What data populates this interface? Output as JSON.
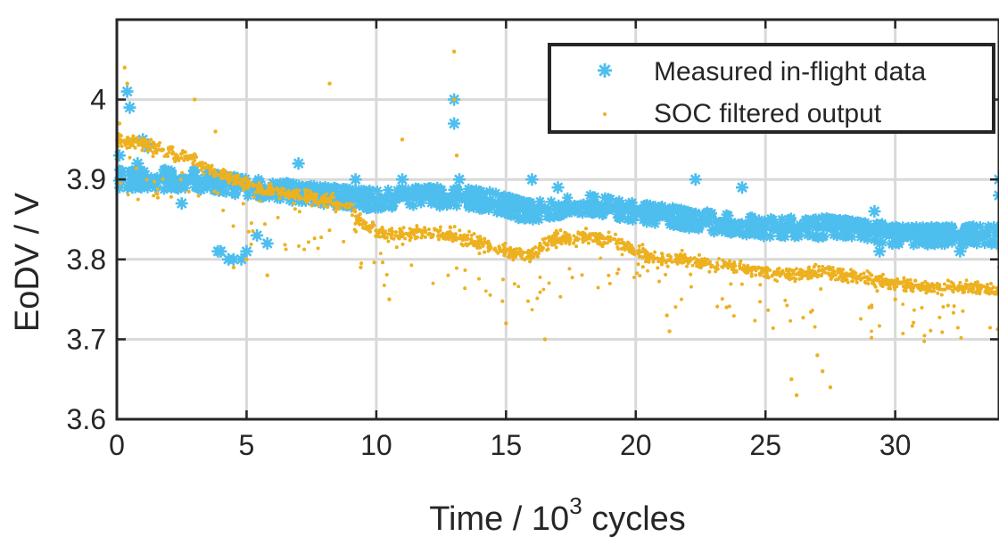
{
  "chart_data": {
    "type": "scatter",
    "title": "",
    "xlabel_prefix": "Time  /  10",
    "xlabel_sup": "3",
    "xlabel_suffix": " cycles",
    "ylabel": "EoDV  /  V",
    "xlim": [
      0,
      34
    ],
    "ylim": [
      3.6,
      4.1
    ],
    "grid": true,
    "legend_position": "top-right",
    "xticks": [
      0,
      5,
      10,
      15,
      20,
      25,
      30
    ],
    "yticks": [
      3.6,
      3.7,
      3.8,
      3.9,
      4.0
    ],
    "xtick_labels": [
      "0",
      "5",
      "10",
      "15",
      "20",
      "25",
      "30"
    ],
    "ytick_labels": [
      "3.6",
      "3.7",
      "3.8",
      "3.9",
      "4"
    ],
    "colors": {
      "measured": "#4DBEEE",
      "filtered": "#EDB120",
      "axis": "#262626",
      "grid": "#d9d9d9"
    },
    "series": [
      {
        "name": "Measured in-flight data",
        "marker": "asterisk",
        "baseline": [
          [
            0,
            3.9
          ],
          [
            3,
            3.9
          ],
          [
            5,
            3.89
          ],
          [
            8,
            3.88
          ],
          [
            10,
            3.875
          ],
          [
            12,
            3.88
          ],
          [
            14,
            3.875
          ],
          [
            16,
            3.86
          ],
          [
            18,
            3.87
          ],
          [
            20,
            3.86
          ],
          [
            22,
            3.85
          ],
          [
            25,
            3.84
          ],
          [
            28,
            3.84
          ],
          [
            30,
            3.83
          ],
          [
            34,
            3.83
          ]
        ],
        "points": [
          [
            0.1,
            3.93
          ],
          [
            0.2,
            3.91
          ],
          [
            0.4,
            3.89
          ],
          [
            0.4,
            4.01
          ],
          [
            0.5,
            3.99
          ],
          [
            0.6,
            3.89
          ],
          [
            0.8,
            3.92
          ],
          [
            1.0,
            3.95
          ],
          [
            1.2,
            3.94
          ],
          [
            2.5,
            3.87
          ],
          [
            3.9,
            3.81
          ],
          [
            4.0,
            3.81
          ],
          [
            4.3,
            3.8
          ],
          [
            4.5,
            3.8
          ],
          [
            4.8,
            3.8
          ],
          [
            5.0,
            3.81
          ],
          [
            5.4,
            3.83
          ],
          [
            5.8,
            3.82
          ],
          [
            7.0,
            3.92
          ],
          [
            9.2,
            3.9
          ],
          [
            11.0,
            3.9
          ],
          [
            13.0,
            3.97
          ],
          [
            13.0,
            4.0
          ],
          [
            13.2,
            3.9
          ],
          [
            16.0,
            3.9
          ],
          [
            17.0,
            3.89
          ],
          [
            22.3,
            3.9
          ],
          [
            24.1,
            3.89
          ],
          [
            29.2,
            3.86
          ],
          [
            29.4,
            3.81
          ],
          [
            32.5,
            3.81
          ],
          [
            33.0,
            3.84
          ],
          [
            33.8,
            3.84
          ],
          [
            34.0,
            3.9
          ],
          [
            34.0,
            3.88
          ]
        ]
      },
      {
        "name": "SOC filtered output",
        "marker": "dot",
        "baseline": [
          [
            0,
            3.95
          ],
          [
            1,
            3.945
          ],
          [
            2,
            3.935
          ],
          [
            3,
            3.925
          ],
          [
            4,
            3.905
          ],
          [
            5,
            3.895
          ],
          [
            6,
            3.885
          ],
          [
            7,
            3.88
          ],
          [
            8,
            3.875
          ],
          [
            9,
            3.865
          ],
          [
            9.5,
            3.845
          ],
          [
            10,
            3.835
          ],
          [
            11,
            3.83
          ],
          [
            12,
            3.835
          ],
          [
            13,
            3.83
          ],
          [
            14,
            3.82
          ],
          [
            15,
            3.81
          ],
          [
            16,
            3.805
          ],
          [
            16.5,
            3.82
          ],
          [
            17,
            3.825
          ],
          [
            18,
            3.83
          ],
          [
            19,
            3.825
          ],
          [
            20,
            3.81
          ],
          [
            21,
            3.8
          ],
          [
            22,
            3.8
          ],
          [
            23,
            3.795
          ],
          [
            24,
            3.79
          ],
          [
            25,
            3.785
          ],
          [
            26,
            3.78
          ],
          [
            27,
            3.785
          ],
          [
            28,
            3.78
          ],
          [
            29,
            3.775
          ],
          [
            30,
            3.77
          ],
          [
            31,
            3.765
          ],
          [
            32,
            3.765
          ],
          [
            33,
            3.765
          ],
          [
            34,
            3.76
          ]
        ],
        "points": [
          [
            0.3,
            4.04
          ],
          [
            0.4,
            4.02
          ],
          [
            0.1,
            3.97
          ],
          [
            3.0,
            4.0
          ],
          [
            8.2,
            4.02
          ],
          [
            11.0,
            3.95
          ],
          [
            13.0,
            4.06
          ],
          [
            13.0,
            4.0
          ],
          [
            13.1,
            3.93
          ],
          [
            3.8,
            3.96
          ],
          [
            4.5,
            3.79
          ],
          [
            5.0,
            3.8
          ],
          [
            5.8,
            3.78
          ],
          [
            9.4,
            3.79
          ],
          [
            10.5,
            3.75
          ],
          [
            15.0,
            3.72
          ],
          [
            16.5,
            3.7
          ],
          [
            21.2,
            3.73
          ],
          [
            21.3,
            3.71
          ],
          [
            23.5,
            3.74
          ],
          [
            26.0,
            3.65
          ],
          [
            26.2,
            3.63
          ],
          [
            27.0,
            3.68
          ],
          [
            27.2,
            3.66
          ],
          [
            27.5,
            3.64
          ],
          [
            29.0,
            3.74
          ],
          [
            30.0,
            3.75
          ],
          [
            34.0,
            3.79
          ],
          [
            34.0,
            3.81
          ]
        ]
      }
    ]
  }
}
